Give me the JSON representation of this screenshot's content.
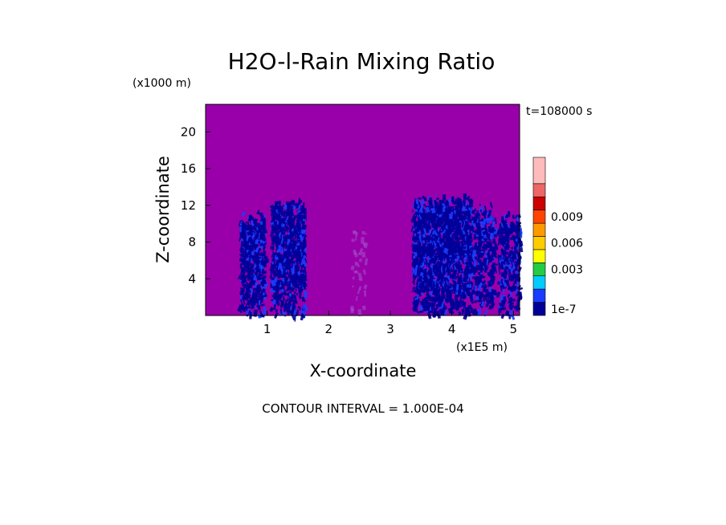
{
  "chart_data": {
    "type": "heatmap",
    "title": "H2O-l-Rain Mixing Ratio",
    "time_label": "t=108000 s",
    "xlabel": "X-coordinate",
    "ylabel": "Z-coordinate",
    "x_unit": "(x1E5 m)",
    "y_unit": "(x1000 m)",
    "x_ticks": [
      "1",
      "2",
      "3",
      "4",
      "5"
    ],
    "y_ticks": [
      "4",
      "8",
      "12",
      "16",
      "20"
    ],
    "xlim": [
      0,
      5.1
    ],
    "ylim": [
      0,
      23
    ],
    "contour_interval": "CONTOUR INTERVAL = 1.000E-04",
    "background_color": "#9900aa",
    "colorbar": {
      "colors": [
        "#000099",
        "#1a3cff",
        "#00ccff",
        "#22cc44",
        "#ffff00",
        "#ffcc00",
        "#ff9900",
        "#ff4400",
        "#cc0000",
        "#ee6666",
        "#ffbbbb"
      ],
      "labels": [
        "1e-7",
        "0.003",
        "0.006",
        "0.009"
      ],
      "label_positions": [
        0,
        3,
        5,
        7
      ]
    },
    "rain_bands": [
      {
        "x_start": 0.55,
        "x_end": 0.95,
        "z_top": 11.5,
        "density": 0.8
      },
      {
        "x_start": 1.05,
        "x_end": 1.6,
        "z_top": 13.0,
        "density": 0.8
      },
      {
        "x_start": 2.35,
        "x_end": 2.6,
        "z_top": 10.0,
        "density": 0.1
      },
      {
        "x_start": 3.35,
        "x_end": 4.3,
        "z_top": 13.5,
        "density": 0.95
      },
      {
        "x_start": 4.3,
        "x_end": 4.7,
        "z_top": 12.5,
        "density": 0.5
      },
      {
        "x_start": 4.75,
        "x_end": 5.1,
        "z_top": 11.5,
        "density": 0.55
      }
    ]
  }
}
